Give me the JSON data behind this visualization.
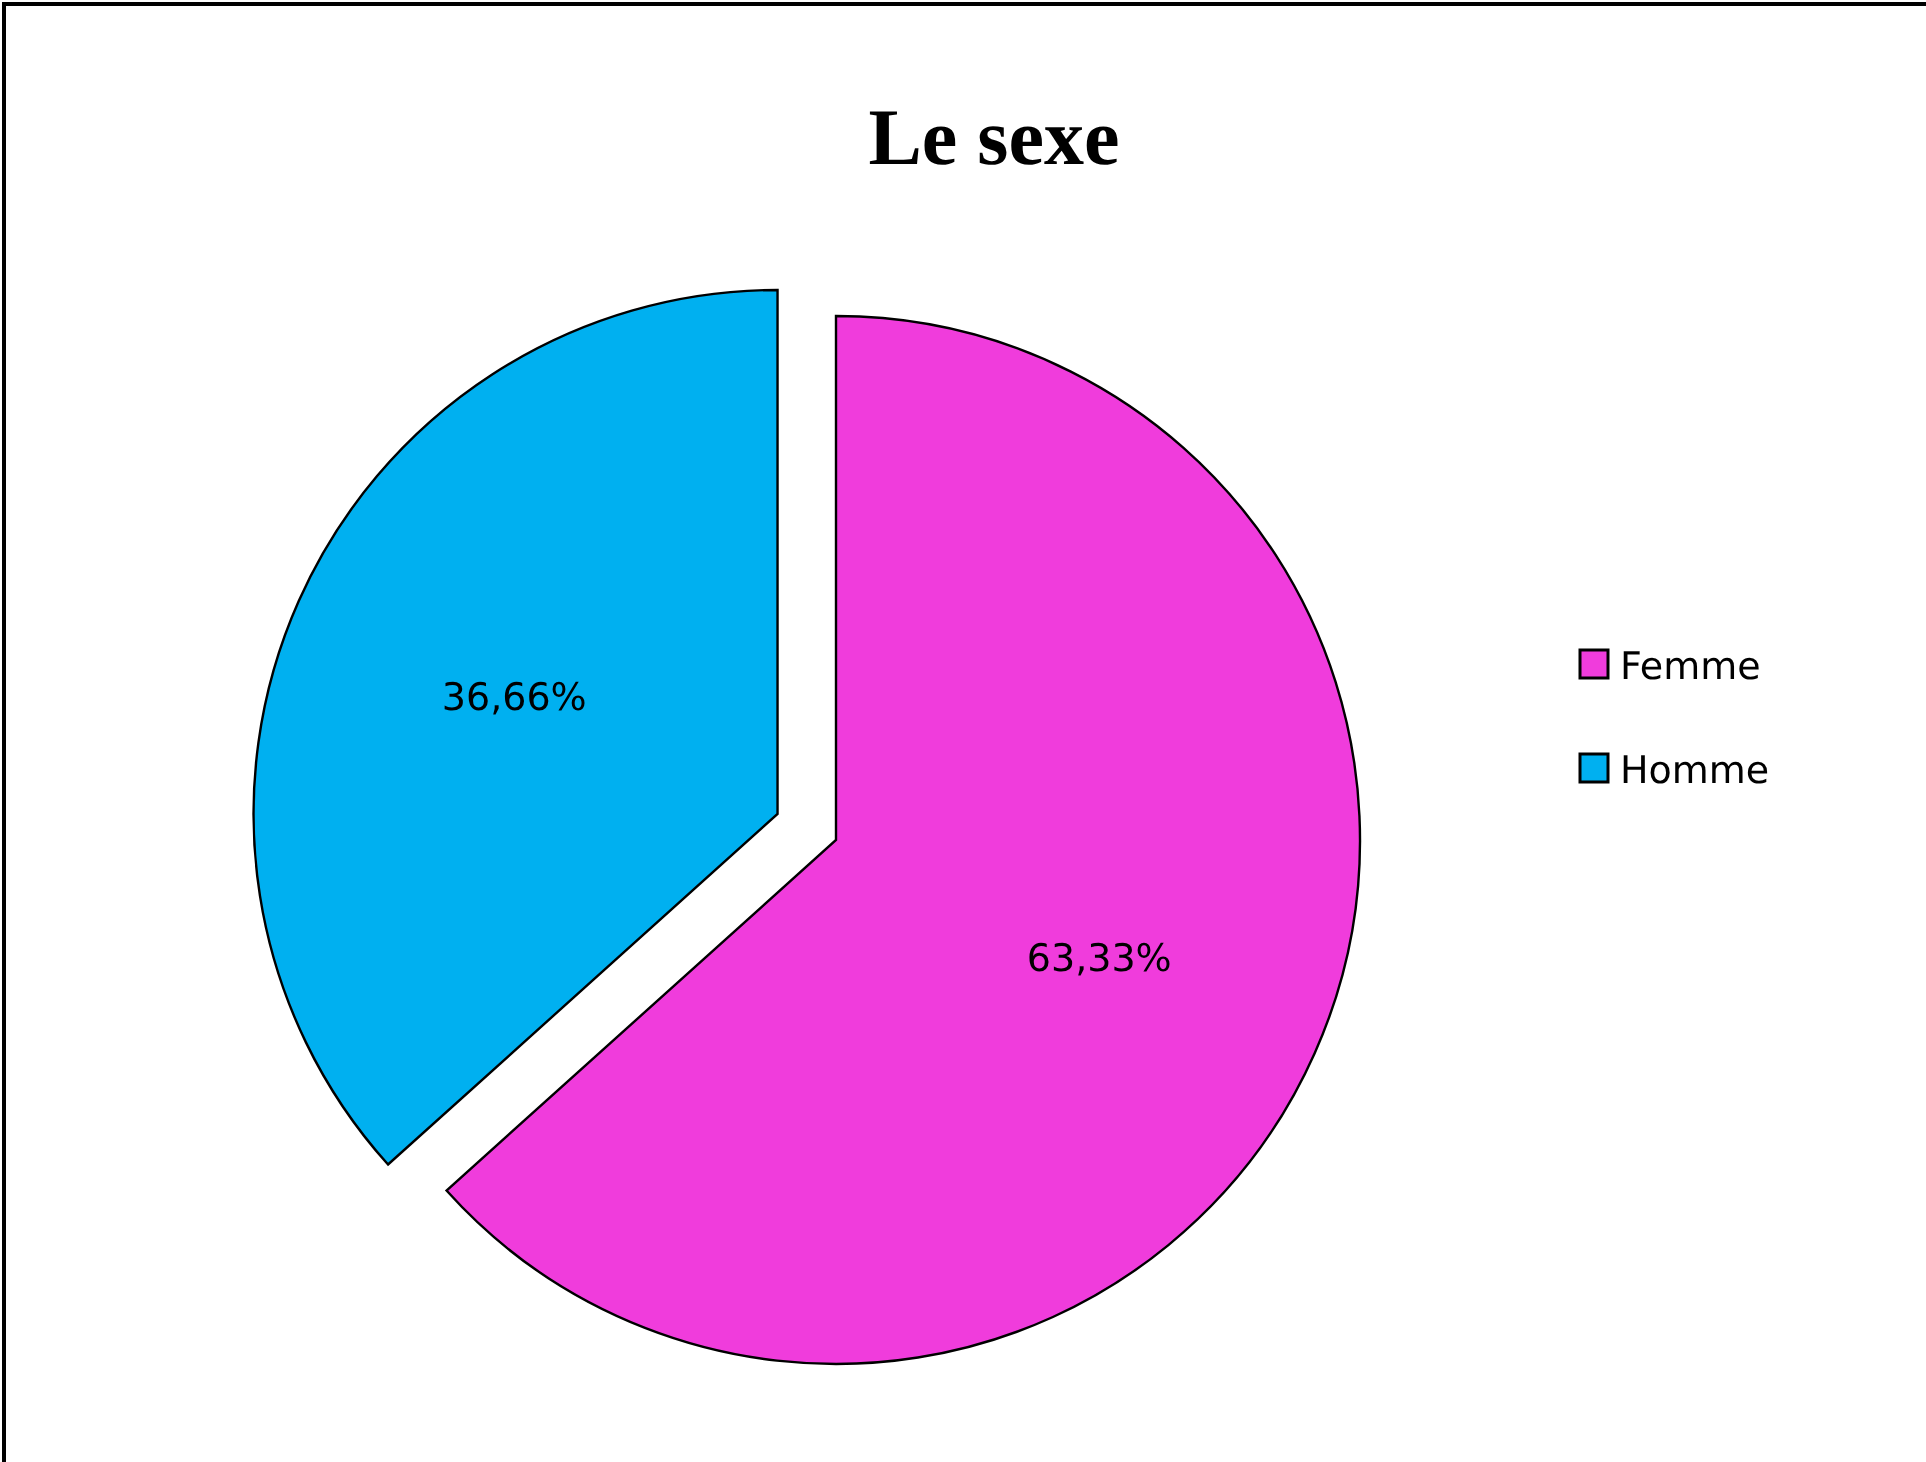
{
  "chart_data": {
    "type": "pie",
    "title": "Le sexe",
    "categories": [
      "Femme",
      "Homme"
    ],
    "values": [
      63.33,
      36.66
    ],
    "colors": [
      "#f03cdc",
      "#00b0f0"
    ],
    "value_labels": [
      "63,33%",
      "36,66%"
    ],
    "legend": "right"
  }
}
